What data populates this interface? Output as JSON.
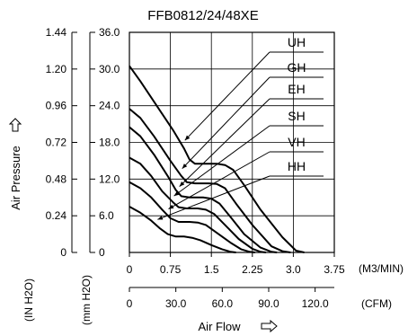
{
  "chart_data": {
    "type": "line",
    "title": "FFB0812/24/48XE",
    "xlabel": "Air Flow",
    "ylabel": "Air Pressure",
    "axes": {
      "x_cmm": {
        "ticks": [
          "0",
          "0.75",
          "1.5",
          "2.25",
          "3.0",
          "3.75"
        ],
        "unit": "(M3/MIN)",
        "range": [
          0,
          3.75
        ]
      },
      "x_cfm": {
        "ticks": [
          "0",
          "30.0",
          "60.0",
          "90.0",
          "120.0"
        ],
        "unit": "(CFM)",
        "range": [
          0,
          132.4
        ]
      },
      "y_mm": {
        "ticks": [
          "0",
          "6.0",
          "12.0",
          "18.0",
          "24.0",
          "30.0",
          "36.0"
        ],
        "unit": "(mm H2O)",
        "range": [
          0,
          36
        ]
      },
      "y_in": {
        "ticks": [
          "0",
          "0.24",
          "0.48",
          "0.72",
          "0.96",
          "1.20",
          "1.44"
        ],
        "unit": "(IN H2O)",
        "range": [
          0,
          1.44
        ]
      }
    },
    "grid": true,
    "series": [
      {
        "name": "UH",
        "x": [
          0,
          0.2,
          0.5,
          0.8,
          1.0,
          1.1,
          1.2,
          1.4,
          1.6,
          1.75,
          1.9,
          2.1,
          2.4,
          2.8,
          3.05,
          3.2
        ],
        "y": [
          30.5,
          28.0,
          24.0,
          20.0,
          17.0,
          15.2,
          14.5,
          14.5,
          14.5,
          14.3,
          13.5,
          11.0,
          7.0,
          2.5,
          0.3,
          0
        ]
      },
      {
        "name": "GH",
        "x": [
          0,
          0.2,
          0.45,
          0.75,
          0.95,
          1.05,
          1.2,
          1.45,
          1.6,
          1.75,
          1.95,
          2.25,
          2.6,
          2.8,
          2.95
        ],
        "y": [
          23.5,
          22.0,
          19.0,
          15.0,
          12.5,
          11.5,
          11.3,
          11.3,
          11.2,
          10.5,
          8.0,
          4.5,
          1.0,
          0.2,
          0
        ]
      },
      {
        "name": "EH",
        "x": [
          0,
          0.2,
          0.45,
          0.7,
          0.85,
          0.95,
          1.1,
          1.35,
          1.5,
          1.65,
          1.85,
          2.1,
          2.4,
          2.6,
          2.7
        ],
        "y": [
          20.5,
          19.0,
          16.0,
          12.5,
          10.2,
          9.2,
          9.0,
          9.0,
          8.8,
          8.0,
          5.8,
          3.0,
          0.8,
          0.1,
          0
        ]
      },
      {
        "name": "SH",
        "x": [
          0,
          0.2,
          0.4,
          0.6,
          0.8,
          0.9,
          1.05,
          1.25,
          1.4,
          1.55,
          1.75,
          2.0,
          2.25,
          2.4,
          2.5
        ],
        "y": [
          15.5,
          14.5,
          12.5,
          10.0,
          8.2,
          7.4,
          7.2,
          7.2,
          7.0,
          6.3,
          4.5,
          2.2,
          0.6,
          0.1,
          0
        ]
      },
      {
        "name": "VH",
        "x": [
          0,
          0.2,
          0.4,
          0.6,
          0.75,
          0.9,
          1.1,
          1.25,
          1.4,
          1.6,
          1.85,
          2.05,
          2.2,
          2.3
        ],
        "y": [
          11.5,
          10.5,
          9.0,
          7.0,
          5.6,
          5.0,
          5.0,
          4.9,
          4.5,
          3.2,
          1.6,
          0.5,
          0.1,
          0
        ]
      },
      {
        "name": "HH",
        "x": [
          0,
          0.2,
          0.4,
          0.55,
          0.7,
          0.85,
          1.0,
          1.15,
          1.3,
          1.5,
          1.7,
          1.85,
          1.95
        ],
        "y": [
          7.5,
          6.5,
          5.2,
          4.0,
          3.0,
          2.6,
          2.6,
          2.4,
          2.0,
          1.2,
          0.5,
          0.1,
          0
        ]
      }
    ]
  }
}
